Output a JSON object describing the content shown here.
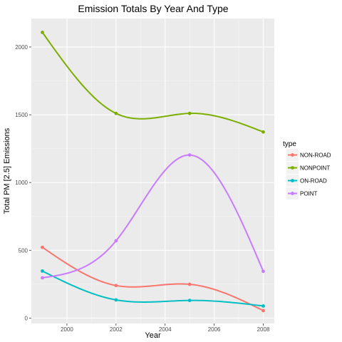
{
  "chart_data": {
    "type": "line",
    "title": "Emission Totals By Year And Type",
    "xlabel": "Year",
    "ylabel": "Total PM [2.5] Emissions",
    "x": [
      1999,
      2002,
      2005,
      2008
    ],
    "xlim": [
      1998.55,
      2008.45
    ],
    "ylim": [
      -40,
      2210
    ],
    "xticks": [
      2000,
      2002,
      2004,
      2006,
      2008
    ],
    "yticks": [
      0,
      500,
      1000,
      1500,
      2000
    ],
    "grid": true,
    "smooth": true,
    "legend": {
      "title": "type",
      "placement": "right"
    },
    "series": [
      {
        "name": "NON-ROAD",
        "color": "#F8766D",
        "values": [
          522,
          240,
          249,
          55
        ]
      },
      {
        "name": "NONPOINT",
        "color": "#7CAE00",
        "values": [
          2108,
          1510,
          1510,
          1373
        ]
      },
      {
        "name": "ON-ROAD",
        "color": "#00BFC4",
        "values": [
          347,
          134,
          130,
          89
        ]
      },
      {
        "name": "POINT",
        "color": "#C77CFF",
        "values": [
          297,
          570,
          1203,
          345
        ]
      }
    ]
  }
}
